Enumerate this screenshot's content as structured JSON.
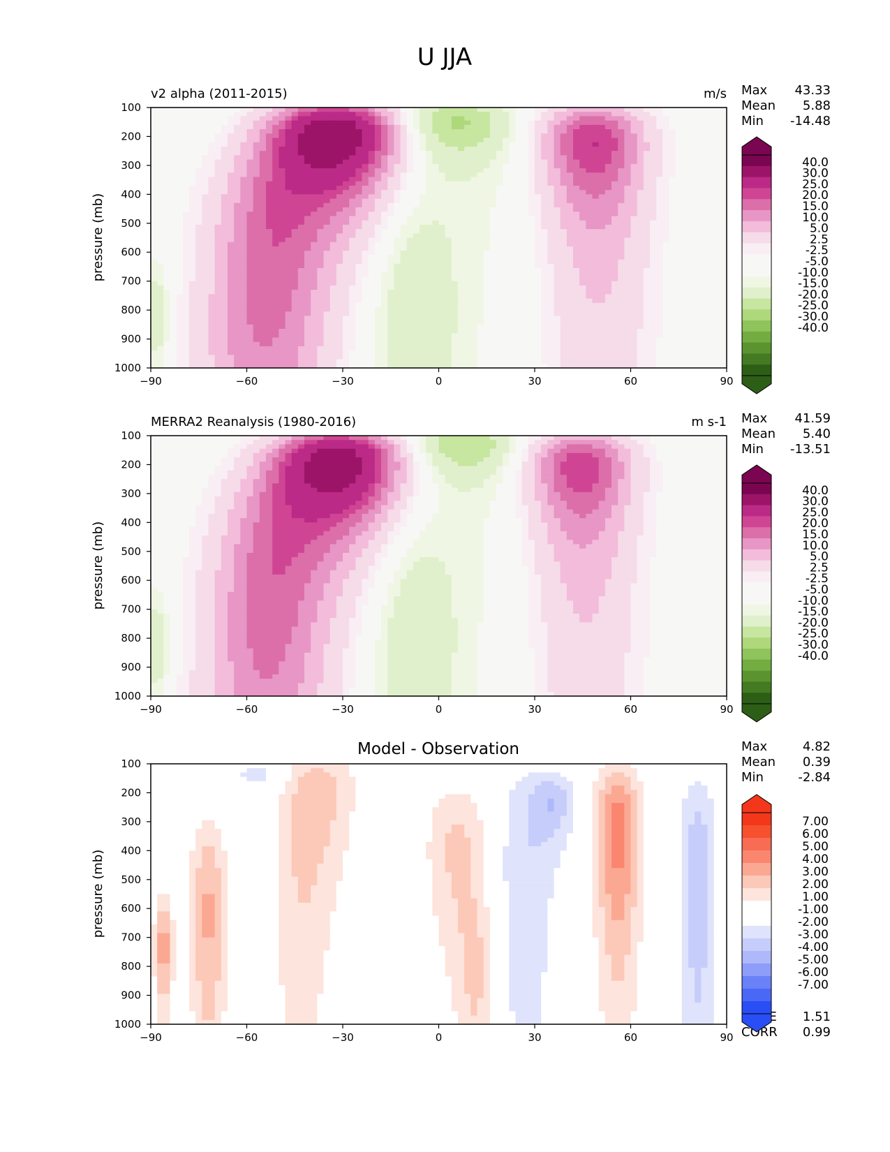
{
  "figure_title": "U JJA",
  "colors": {
    "pos": [
      "#f9eef3",
      "#f6dbe9",
      "#f2bcda",
      "#e796c5",
      "#dc6fa9",
      "#cf4594",
      "#bb2a87",
      "#9c1468",
      "#7a0550"
    ],
    "neg": [
      "#f0f6e4",
      "#e1f0cc",
      "#c7e6a0",
      "#aed87b",
      "#8fc35c",
      "#73ad42",
      "#5a932f",
      "#447a22",
      "#2d5e16"
    ],
    "neutral": "#f7f7f6",
    "diff_pos": [
      "#fde4dc",
      "#fcc8b8",
      "#fba893",
      "#fa8670",
      "#f86b54",
      "#f6502f",
      "#f2371a"
    ],
    "diff_neg": [
      "#dfe3fb",
      "#c6cdfb",
      "#aeb9fb",
      "#8f9dfa",
      "#6b81f8",
      "#4a68f6",
      "#2a4ef5"
    ]
  },
  "stats_labels": {
    "max": "Max",
    "mean": "Mean",
    "min": "Min",
    "rmse": "RMSE",
    "corr": "CORR"
  },
  "chart_data": [
    {
      "type": "contour",
      "panel": "model",
      "title_left": "v2 alpha (2011-2015)",
      "title_center": "",
      "units": "m/s",
      "ylabel": "pressure (mb)",
      "xlim": [
        -90,
        90
      ],
      "ylim": [
        1000,
        100
      ],
      "x_ticks": [
        -90,
        -60,
        -30,
        0,
        30,
        60,
        90
      ],
      "x_tick_labels": [
        "−90",
        "−60",
        "−30",
        "0",
        "30",
        "60",
        "90"
      ],
      "y_ticks": [
        100,
        200,
        300,
        400,
        500,
        600,
        700,
        800,
        900,
        1000
      ],
      "y_tick_labels": [
        "100",
        "200",
        "300",
        "400",
        "500",
        "600",
        "700",
        "800",
        "900",
        "1000"
      ],
      "stats": {
        "max": "43.33",
        "mean": "5.88",
        "min": "-14.48"
      },
      "colorbar_labels": [
        "40.0",
        "30.0",
        "25.0",
        "20.0",
        "15.0",
        "10.0",
        "5.0",
        "2.5",
        "-2.5",
        "-5.0",
        "-10.0",
        "-15.0",
        "-20.0",
        "-25.0",
        "-30.0",
        "-40.0"
      ],
      "field": {
        "sh_lat": -31,
        "sh_p": 200,
        "sh_max": 43.3,
        "nh_lat": 48,
        "nh_p": 210,
        "nh_max": 25,
        "trop_min": -14.5,
        "trop_lat": 5,
        "trop_p": 150
      }
    },
    {
      "type": "contour",
      "panel": "reference",
      "title_left": "MERRA2 Reanalysis (1980-2016)",
      "title_center": "",
      "units": "m s-1",
      "ylabel": "pressure (mb)",
      "xlim": [
        -90,
        90
      ],
      "ylim": [
        1000,
        100
      ],
      "x_ticks": [
        -90,
        -60,
        -30,
        0,
        30,
        60,
        90
      ],
      "x_tick_labels": [
        "−90",
        "−60",
        "−30",
        "0",
        "30",
        "60",
        "90"
      ],
      "y_ticks": [
        100,
        200,
        300,
        400,
        500,
        600,
        700,
        800,
        900,
        1000
      ],
      "y_tick_labels": [
        "100",
        "200",
        "300",
        "400",
        "500",
        "600",
        "700",
        "800",
        "900",
        "1000"
      ],
      "stats": {
        "max": "41.59",
        "mean": "5.40",
        "min": "-13.51"
      },
      "colorbar_labels": [
        "40.0",
        "30.0",
        "25.0",
        "20.0",
        "15.0",
        "10.0",
        "5.0",
        "2.5",
        "-2.5",
        "-5.0",
        "-10.0",
        "-15.0",
        "-20.0",
        "-25.0",
        "-30.0",
        "-40.0"
      ],
      "field": {
        "sh_lat": -30,
        "sh_p": 200,
        "sh_max": 41.6,
        "nh_lat": 44,
        "nh_p": 200,
        "nh_max": 24,
        "trop_min": -13.5,
        "trop_lat": 8,
        "trop_p": 130
      }
    },
    {
      "type": "contour",
      "panel": "difference",
      "title_left": "",
      "title_center": "Model - Observation",
      "units": "",
      "ylabel": "pressure (mb)",
      "xlim": [
        -90,
        90
      ],
      "ylim": [
        1000,
        100
      ],
      "x_ticks": [
        -90,
        -60,
        -30,
        0,
        30,
        60,
        90
      ],
      "x_tick_labels": [
        "−90",
        "−60",
        "−30",
        "0",
        "30",
        "60",
        "90"
      ],
      "y_ticks": [
        100,
        200,
        300,
        400,
        500,
        600,
        700,
        800,
        900,
        1000
      ],
      "y_tick_labels": [
        "100",
        "200",
        "300",
        "400",
        "500",
        "600",
        "700",
        "800",
        "900",
        "1000"
      ],
      "stats": {
        "max": "4.82",
        "mean": "0.39",
        "min": "-2.84"
      },
      "rmse": "1.51",
      "corr": "0.99",
      "colorbar_labels": [
        "7.00",
        "6.00",
        "5.00",
        "4.00",
        "3.00",
        "2.00",
        "1.00",
        "-1.00",
        "-2.00",
        "-3.00",
        "-4.00",
        "-5.00",
        "-6.00",
        "-7.00"
      ]
    }
  ]
}
